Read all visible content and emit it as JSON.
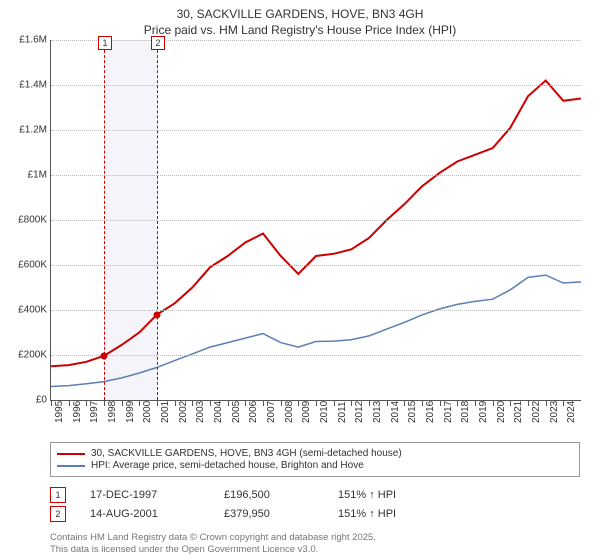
{
  "title_line1": "30, SACKVILLE GARDENS, HOVE, BN3 4GH",
  "title_line2": "Price paid vs. HM Land Registry's House Price Index (HPI)",
  "chart": {
    "type": "line",
    "background_color": "#ffffff",
    "grid_color": "#bbbbbb",
    "axis_color": "#555555",
    "xlim": [
      1995,
      2025
    ],
    "ylim": [
      0,
      1600000
    ],
    "ytick_step": 200000,
    "yticks": [
      {
        "v": 0,
        "label": "£0"
      },
      {
        "v": 200000,
        "label": "£200K"
      },
      {
        "v": 400000,
        "label": "£400K"
      },
      {
        "v": 600000,
        "label": "£600K"
      },
      {
        "v": 800000,
        "label": "£800K"
      },
      {
        "v": 1000000,
        "label": "£1M"
      },
      {
        "v": 1200000,
        "label": "£1.2M"
      },
      {
        "v": 1400000,
        "label": "£1.4M"
      },
      {
        "v": 1600000,
        "label": "£1.6M"
      }
    ],
    "xticks": [
      1995,
      1996,
      1997,
      1998,
      1999,
      2000,
      2001,
      2002,
      2003,
      2004,
      2005,
      2006,
      2007,
      2008,
      2009,
      2010,
      2011,
      2012,
      2013,
      2014,
      2015,
      2016,
      2017,
      2018,
      2019,
      2020,
      2021,
      2022,
      2023,
      2024
    ],
    "band": {
      "from": 1998,
      "to": 2001,
      "color": "rgba(230,230,245,.45)"
    },
    "events": [
      {
        "x": 1998,
        "label": "1",
        "box_color": "#cc0000"
      },
      {
        "x": 2001,
        "label": "2",
        "box_color": "#cc0000"
      }
    ],
    "markers": [
      {
        "x": 1998,
        "y": 196500,
        "color": "#cc0000"
      },
      {
        "x": 2001,
        "y": 379950,
        "color": "#cc0000"
      }
    ],
    "series": [
      {
        "name": "price_paid",
        "color": "#cc0000",
        "width": 2,
        "points": [
          [
            1995,
            150000
          ],
          [
            1996,
            155000
          ],
          [
            1997,
            170000
          ],
          [
            1998,
            196500
          ],
          [
            1999,
            245000
          ],
          [
            2000,
            300000
          ],
          [
            2001,
            379950
          ],
          [
            2002,
            430000
          ],
          [
            2003,
            500000
          ],
          [
            2004,
            590000
          ],
          [
            2005,
            640000
          ],
          [
            2006,
            700000
          ],
          [
            2007,
            740000
          ],
          [
            2008,
            640000
          ],
          [
            2009,
            560000
          ],
          [
            2010,
            640000
          ],
          [
            2011,
            650000
          ],
          [
            2012,
            670000
          ],
          [
            2013,
            720000
          ],
          [
            2014,
            800000
          ],
          [
            2015,
            870000
          ],
          [
            2016,
            950000
          ],
          [
            2017,
            1010000
          ],
          [
            2018,
            1060000
          ],
          [
            2019,
            1090000
          ],
          [
            2020,
            1120000
          ],
          [
            2021,
            1210000
          ],
          [
            2022,
            1350000
          ],
          [
            2023,
            1420000
          ],
          [
            2024,
            1330000
          ],
          [
            2025,
            1340000
          ]
        ]
      },
      {
        "name": "hpi",
        "color": "#5b7fb5",
        "width": 1.5,
        "points": [
          [
            1995,
            60000
          ],
          [
            1996,
            64000
          ],
          [
            1997,
            72000
          ],
          [
            1998,
            82000
          ],
          [
            1999,
            98000
          ],
          [
            2000,
            120000
          ],
          [
            2001,
            145000
          ],
          [
            2002,
            175000
          ],
          [
            2003,
            205000
          ],
          [
            2004,
            235000
          ],
          [
            2005,
            255000
          ],
          [
            2006,
            275000
          ],
          [
            2007,
            295000
          ],
          [
            2008,
            255000
          ],
          [
            2009,
            235000
          ],
          [
            2010,
            260000
          ],
          [
            2011,
            262000
          ],
          [
            2012,
            268000
          ],
          [
            2013,
            285000
          ],
          [
            2014,
            315000
          ],
          [
            2015,
            345000
          ],
          [
            2016,
            378000
          ],
          [
            2017,
            405000
          ],
          [
            2018,
            425000
          ],
          [
            2019,
            438000
          ],
          [
            2020,
            448000
          ],
          [
            2021,
            490000
          ],
          [
            2022,
            545000
          ],
          [
            2023,
            555000
          ],
          [
            2024,
            520000
          ],
          [
            2025,
            525000
          ]
        ]
      }
    ]
  },
  "legend": {
    "items": [
      {
        "color": "#cc0000",
        "label": "30, SACKVILLE GARDENS, HOVE, BN3 4GH (semi-detached house)"
      },
      {
        "color": "#5b7fb5",
        "label": "HPI: Average price, semi-detached house, Brighton and Hove"
      }
    ]
  },
  "notes": [
    {
      "n": "1",
      "box_color": "#cc0000",
      "date": "17-DEC-1997",
      "price": "£196,500",
      "delta": "151% ↑ HPI"
    },
    {
      "n": "2",
      "box_color": "#cc0000",
      "date": "14-AUG-2001",
      "price": "£379,950",
      "delta": "151% ↑ HPI"
    }
  ],
  "footer_line1": "Contains HM Land Registry data © Crown copyright and database right 2025.",
  "footer_line2": "This data is licensed under the Open Government Licence v3.0."
}
